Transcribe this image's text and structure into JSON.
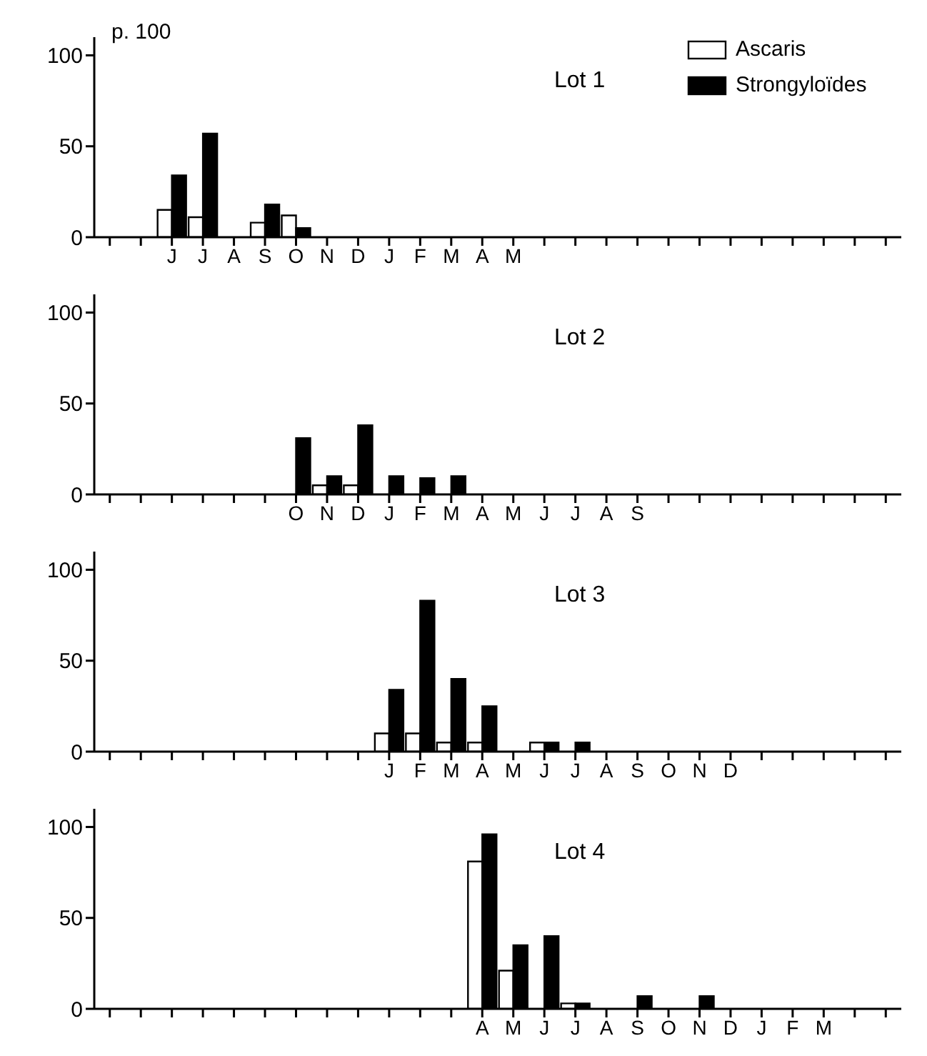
{
  "chart_data": [
    {
      "type": "bar",
      "ylabel": "p. 100",
      "annotations": [
        "Lot 1"
      ],
      "ylim": [
        0,
        110
      ],
      "yticks": [
        0,
        50,
        100
      ],
      "legend": "top right",
      "categories": [
        null,
        null,
        "J",
        "J",
        "A",
        "S",
        "O",
        "N",
        "D",
        "J",
        "F",
        "M",
        "A",
        "M",
        null,
        null,
        null,
        null,
        null,
        null,
        null,
        null,
        null,
        null,
        null,
        null
      ],
      "series": [
        {
          "name": "Ascaris",
          "color": "#ffffff",
          "values": [
            null,
            null,
            15,
            11,
            null,
            8,
            12,
            null,
            null,
            null,
            null,
            null,
            null,
            null,
            null,
            null,
            null,
            null,
            null,
            null,
            null,
            null,
            null,
            null,
            null,
            null
          ]
        },
        {
          "name": "Strongyloïdes",
          "color": "#000000",
          "values": [
            null,
            null,
            34,
            57,
            null,
            18,
            5,
            null,
            null,
            null,
            null,
            null,
            null,
            null,
            null,
            null,
            null,
            null,
            null,
            null,
            null,
            null,
            null,
            null,
            null,
            null
          ]
        }
      ]
    },
    {
      "type": "bar",
      "annotations": [
        "Lot 2"
      ],
      "ylim": [
        0,
        110
      ],
      "yticks": [
        0,
        50,
        100
      ],
      "categories": [
        null,
        null,
        null,
        null,
        null,
        null,
        "O",
        "N",
        "D",
        "J",
        "F",
        "M",
        "A",
        "M",
        "J",
        "J",
        "A",
        "S",
        null,
        null,
        null,
        null,
        null,
        null,
        null,
        null
      ],
      "series": [
        {
          "color": "#ffffff",
          "values": [
            null,
            null,
            null,
            null,
            null,
            null,
            null,
            5,
            5,
            null,
            null,
            null,
            null,
            null,
            null,
            null,
            null,
            null,
            null,
            null,
            null,
            null,
            null,
            null,
            null,
            null
          ]
        },
        {
          "color": "#000000",
          "values": [
            null,
            null,
            null,
            null,
            null,
            null,
            31,
            10,
            38,
            10,
            9,
            10,
            null,
            null,
            null,
            null,
            null,
            null,
            null,
            null,
            null,
            null,
            null,
            null,
            null,
            null
          ]
        }
      ]
    },
    {
      "type": "bar",
      "annotations": [
        "Lot 3"
      ],
      "ylim": [
        0,
        110
      ],
      "yticks": [
        0,
        50,
        100
      ],
      "categories": [
        null,
        null,
        null,
        null,
        null,
        null,
        null,
        null,
        null,
        "J",
        "F",
        "M",
        "A",
        "M",
        "J",
        "J",
        "A",
        "S",
        "O",
        "N",
        "D",
        null,
        null,
        null,
        null,
        null
      ],
      "series": [
        {
          "color": "#ffffff",
          "values": [
            null,
            null,
            null,
            null,
            null,
            null,
            null,
            null,
            null,
            10,
            10,
            5,
            5,
            null,
            5,
            null,
            null,
            null,
            null,
            null,
            null,
            null,
            null,
            null,
            null,
            null
          ]
        },
        {
          "color": "#000000",
          "values": [
            null,
            null,
            null,
            null,
            null,
            null,
            null,
            null,
            null,
            34,
            83,
            40,
            25,
            null,
            5,
            5,
            null,
            null,
            null,
            null,
            null,
            null,
            null,
            null,
            null,
            null
          ]
        }
      ]
    },
    {
      "type": "bar",
      "annotations": [
        "Lot 4"
      ],
      "ylim": [
        0,
        110
      ],
      "yticks": [
        0,
        50,
        100
      ],
      "categories": [
        null,
        null,
        null,
        null,
        null,
        null,
        null,
        null,
        null,
        null,
        null,
        null,
        "A",
        "M",
        "J",
        "J",
        "A",
        "S",
        "O",
        "N",
        "D",
        "J",
        "F",
        "M",
        null,
        null
      ],
      "series": [
        {
          "color": "#ffffff",
          "values": [
            null,
            null,
            null,
            null,
            null,
            null,
            null,
            null,
            null,
            null,
            null,
            null,
            81,
            21,
            null,
            3,
            null,
            null,
            null,
            null,
            null,
            null,
            null,
            null,
            null,
            null
          ]
        },
        {
          "color": "#000000",
          "values": [
            null,
            null,
            null,
            null,
            null,
            null,
            null,
            null,
            null,
            null,
            null,
            null,
            96,
            35,
            40,
            3,
            null,
            7,
            null,
            7,
            null,
            null,
            null,
            null,
            null,
            null
          ]
        }
      ]
    }
  ]
}
